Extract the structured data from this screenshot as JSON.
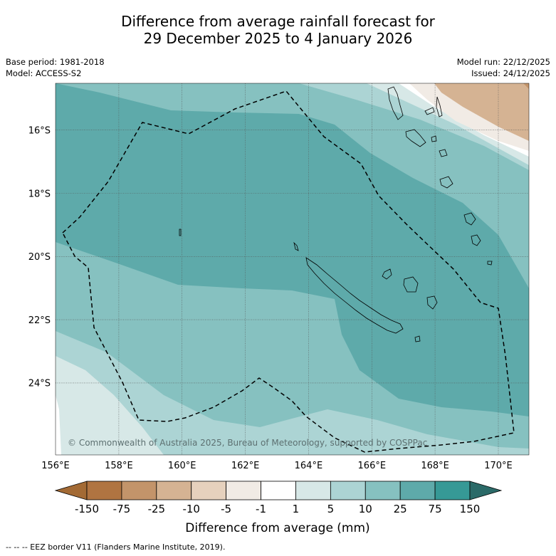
{
  "title": {
    "line1": "Difference from average rainfall forecast for",
    "line2": "29 December 2025 to 4 January 2026"
  },
  "meta": {
    "base_period": "Base period: 1981-2018",
    "model": "Model: ACCESS-S2",
    "model_run": "Model run: 22/12/2025",
    "issued": "Issued: 24/12/2025"
  },
  "map": {
    "x_ticks": [
      "156°E",
      "158°E",
      "160°E",
      "162°E",
      "164°E",
      "166°E",
      "168°E",
      "170°E"
    ],
    "y_ticks": [
      "16°S",
      "18°S",
      "20°S",
      "22°S",
      "24°S"
    ],
    "copyright": "© Commonwealth of Australia 2025, Bureau of Meteorology, supported by COSPPac"
  },
  "colorbar": {
    "labels": [
      "-150",
      "-75",
      "-25",
      "-10",
      "-5",
      "-1",
      "1",
      "5",
      "10",
      "25",
      "75",
      "150"
    ],
    "colors": [
      "#a36a34",
      "#b07441",
      "#c3946a",
      "#d5b393",
      "#e6d1bd",
      "#f1ebe5",
      "#ffffff",
      "#d7e8e7",
      "#acd4d4",
      "#86c1c0",
      "#5eaaaa",
      "#369996",
      "#2b6a68"
    ],
    "title": "Difference from average (mm)"
  },
  "footnote": "--  --  -- EEZ border V11 (Flanders Marine Institute, 2019)."
}
